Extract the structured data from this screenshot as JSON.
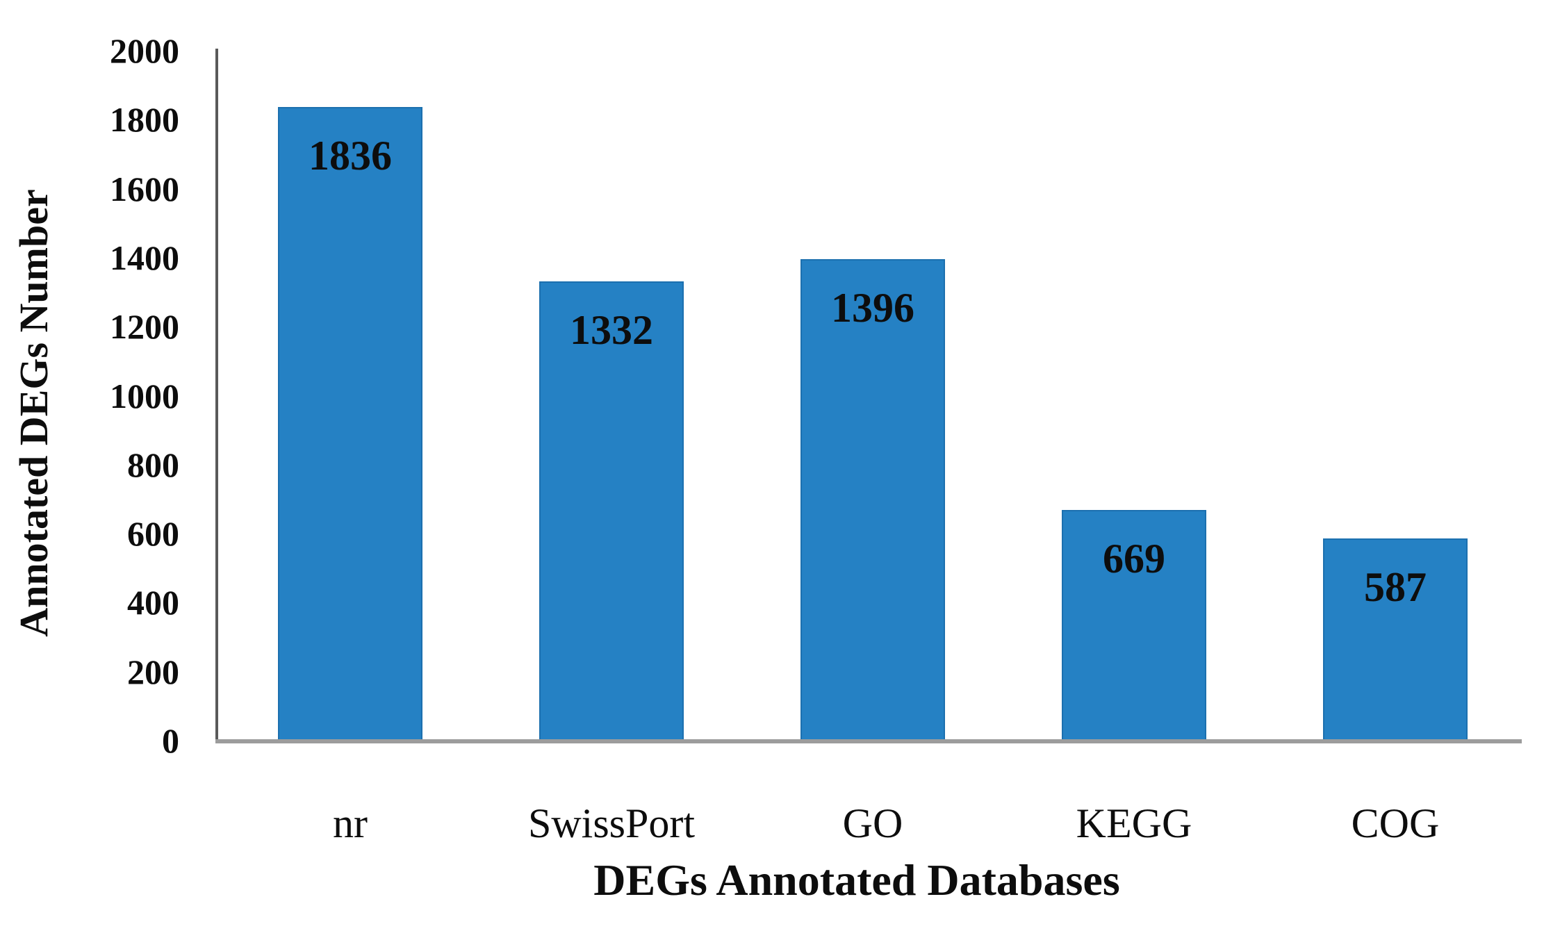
{
  "chart_data": {
    "type": "bar",
    "title": "",
    "categories": [
      "nr",
      "SwissPort",
      "GO",
      "KEGG",
      "COG"
    ],
    "values": [
      1836,
      1332,
      1396,
      669,
      587
    ],
    "bar_value_labels": [
      "1836",
      "1332",
      "1396",
      "669",
      "587"
    ],
    "xlabel": "DEGs Annotated Databases",
    "ylabel": "Annotated DEGs Number",
    "ylim": [
      0,
      2000
    ],
    "ytick_step": 200,
    "yticks": [
      0,
      200,
      400,
      600,
      800,
      1000,
      1200,
      1400,
      1600,
      1800,
      2000
    ],
    "grid": false,
    "legend_position": "none",
    "value_label_position": "inside-top"
  },
  "colors": {
    "bar_fill": "#2581c4",
    "bar_border": "#125c96",
    "y_axis_line": "#5a5a5a",
    "x_axis_line": "#9c9c9c",
    "text": "#0d0d0d",
    "background": "#ffffff"
  }
}
